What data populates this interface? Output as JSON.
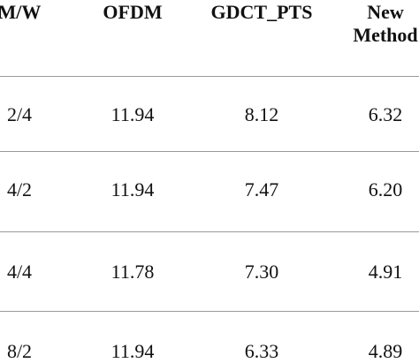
{
  "table": {
    "header": [
      "M/W",
      "OFDM",
      "GDCT_PTS",
      "New Method"
    ],
    "rows": [
      [
        "2/4",
        "11.94",
        "8.12",
        "6.32"
      ],
      [
        "4/2",
        "11.94",
        "7.47",
        "6.20"
      ],
      [
        "4/4",
        "11.78",
        "7.30",
        "4.91"
      ],
      [
        "8/2",
        "11.94",
        "6.33",
        "4.89"
      ]
    ]
  }
}
